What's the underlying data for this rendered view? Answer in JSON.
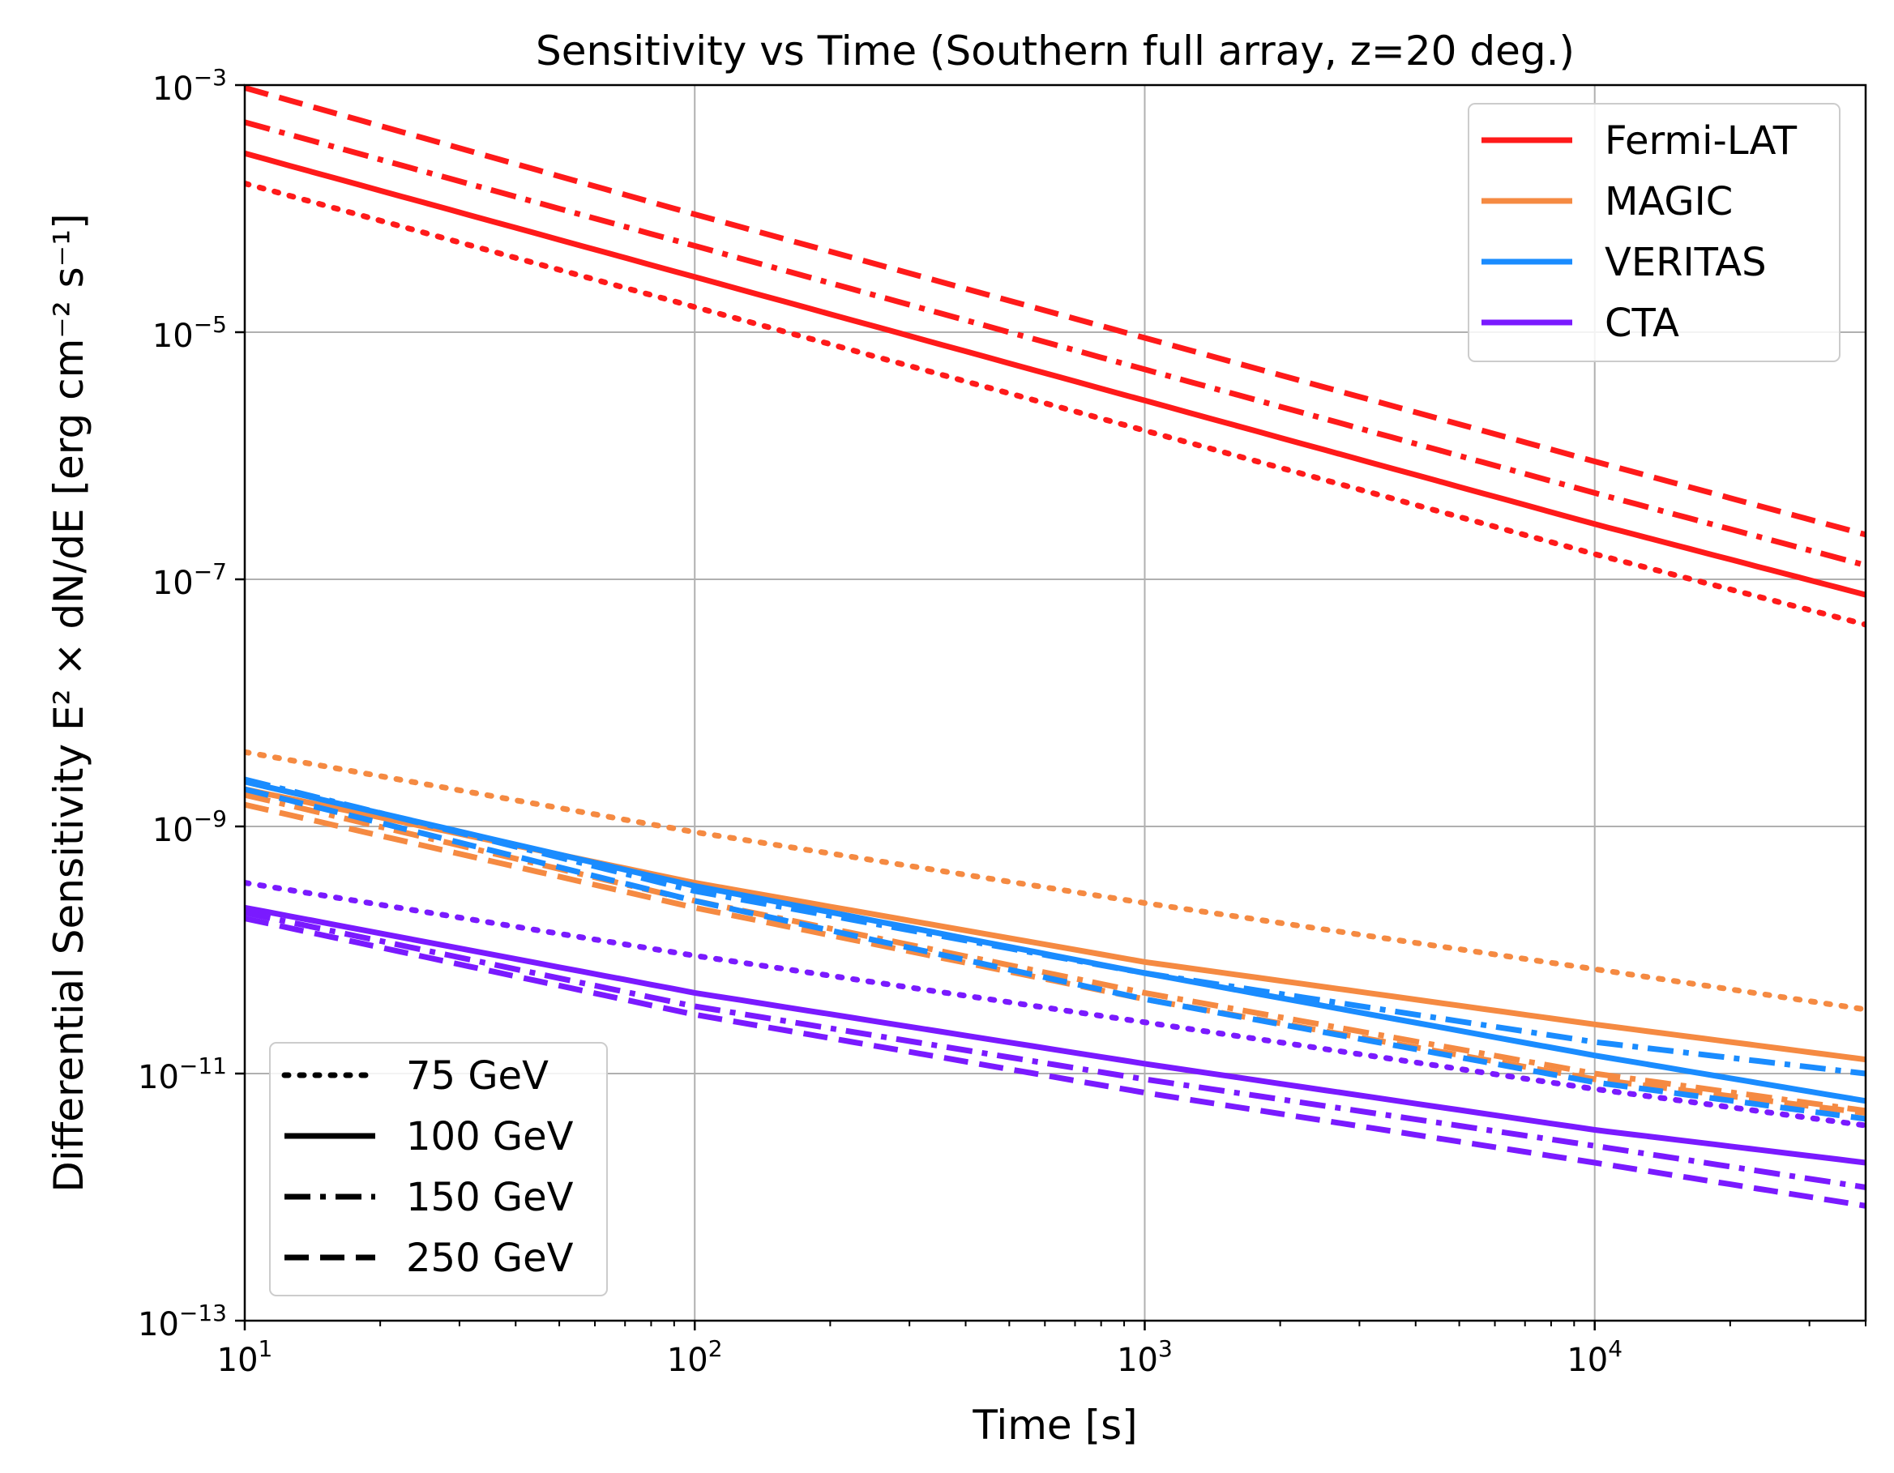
{
  "chart_data": {
    "type": "line",
    "title": "Sensitivity vs Time (Southern full array, z=20 deg.)",
    "xlabel": "Time [s]",
    "ylabel": "Differential Sensitivity E² × dN/dE [erg cm⁻² s⁻¹]",
    "xscale": "log",
    "yscale": "log",
    "xlim": [
      10,
      40000
    ],
    "ylim": [
      1e-13,
      0.001
    ],
    "grid": true,
    "x_ticks": [
      {
        "value": 10,
        "base": "10",
        "exp": "1"
      },
      {
        "value": 100,
        "base": "10",
        "exp": "2"
      },
      {
        "value": 1000,
        "base": "10",
        "exp": "3"
      },
      {
        "value": 10000,
        "base": "10",
        "exp": "4"
      }
    ],
    "y_ticks": [
      {
        "value": 1e-13,
        "base": "10",
        "exp": "−13"
      },
      {
        "value": 1e-11,
        "base": "10",
        "exp": "−11"
      },
      {
        "value": 1e-09,
        "base": "10",
        "exp": "−9"
      },
      {
        "value": 1e-07,
        "base": "10",
        "exp": "−7"
      },
      {
        "value": 1e-05,
        "base": "10",
        "exp": "−5"
      },
      {
        "value": 0.001,
        "base": "10",
        "exp": "−3"
      }
    ],
    "instrument_legend": {
      "position": "top-right",
      "items": [
        {
          "label": "Fermi-LAT",
          "color": "#ff1a1a"
        },
        {
          "label": "MAGIC",
          "color": "#f58a42"
        },
        {
          "label": "VERITAS",
          "color": "#1a8cff"
        },
        {
          "label": "CTA",
          "color": "#7a1aff"
        }
      ]
    },
    "energy_legend": {
      "position": "bottom-left",
      "items": [
        {
          "label": "75 GeV",
          "style": "dotted"
        },
        {
          "label": "100 GeV",
          "style": "solid"
        },
        {
          "label": "150 GeV",
          "style": "dashdot"
        },
        {
          "label": "250 GeV",
          "style": "dashed"
        }
      ]
    },
    "series": [
      {
        "name": "Fermi-LAT 250 GeV",
        "instrument": "Fermi-LAT",
        "energy": "250 GeV",
        "color": "#ff1a1a",
        "style": "dashed",
        "x": [
          10,
          100,
          1000,
          10000,
          40000
        ],
        "values": [
          0.00095,
          9e-05,
          9e-06,
          9e-07,
          2.3e-07
        ]
      },
      {
        "name": "Fermi-LAT 150 GeV",
        "instrument": "Fermi-LAT",
        "energy": "150 GeV",
        "color": "#ff1a1a",
        "style": "dashdot",
        "x": [
          10,
          100,
          1000,
          10000,
          40000
        ],
        "values": [
          0.0005,
          5e-05,
          5e-06,
          5e-07,
          1.3e-07
        ]
      },
      {
        "name": "Fermi-LAT 100 GeV",
        "instrument": "Fermi-LAT",
        "energy": "100 GeV",
        "color": "#ff1a1a",
        "style": "solid",
        "x": [
          10,
          100,
          1000,
          10000,
          40000
        ],
        "values": [
          0.00028,
          2.8e-05,
          2.8e-06,
          2.8e-07,
          7.5e-08
        ]
      },
      {
        "name": "Fermi-LAT 75 GeV",
        "instrument": "Fermi-LAT",
        "energy": "75 GeV",
        "color": "#ff1a1a",
        "style": "dotted",
        "x": [
          10,
          100,
          1000,
          10000,
          40000
        ],
        "values": [
          0.00016,
          1.6e-05,
          1.6e-06,
          1.6e-07,
          4.3e-08
        ]
      },
      {
        "name": "MAGIC 75 GeV",
        "instrument": "MAGIC",
        "energy": "75 GeV",
        "color": "#f58a42",
        "style": "dotted",
        "x": [
          10,
          100,
          1000,
          10000,
          40000
        ],
        "values": [
          4e-09,
          9e-10,
          2.4e-10,
          7e-11,
          3.3e-11
        ]
      },
      {
        "name": "MAGIC 100 GeV",
        "instrument": "MAGIC",
        "energy": "100 GeV",
        "color": "#f58a42",
        "style": "solid",
        "x": [
          10,
          100,
          1000,
          10000,
          40000
        ],
        "values": [
          2e-09,
          3.5e-10,
          8e-11,
          2.5e-11,
          1.3e-11
        ]
      },
      {
        "name": "MAGIC 150 GeV",
        "instrument": "MAGIC",
        "energy": "150 GeV",
        "color": "#f58a42",
        "style": "dashdot",
        "x": [
          10,
          100,
          1000,
          10000,
          40000
        ],
        "values": [
          1.8e-09,
          2.5e-10,
          4.5e-11,
          1e-11,
          5e-12
        ]
      },
      {
        "name": "MAGIC 250 GeV",
        "instrument": "MAGIC",
        "energy": "250 GeV",
        "color": "#f58a42",
        "style": "dashed",
        "x": [
          10,
          100,
          1000,
          10000,
          40000
        ],
        "values": [
          1.5e-09,
          2.2e-10,
          4e-11,
          9e-12,
          4.8e-12
        ]
      },
      {
        "name": "VERITAS 100 GeV",
        "instrument": "VERITAS",
        "energy": "100 GeV",
        "color": "#1a8cff",
        "style": "solid",
        "x": [
          10,
          100,
          1000,
          10000,
          40000
        ],
        "values": [
          2.3e-09,
          3.3e-10,
          6.5e-11,
          1.4e-11,
          6e-12
        ]
      },
      {
        "name": "VERITAS 150 GeV",
        "instrument": "VERITAS",
        "energy": "150 GeV",
        "color": "#1a8cff",
        "style": "dashdot",
        "x": [
          10,
          100,
          1000,
          10000,
          40000
        ],
        "values": [
          2.4e-09,
          3e-10,
          6.5e-11,
          1.8e-11,
          1e-11
        ]
      },
      {
        "name": "VERITAS 250 GeV",
        "instrument": "VERITAS",
        "energy": "250 GeV",
        "color": "#1a8cff",
        "style": "dashed",
        "x": [
          10,
          100,
          1000,
          10000,
          40000
        ],
        "values": [
          2e-09,
          2.5e-10,
          4e-11,
          8.5e-12,
          4.3e-12
        ]
      },
      {
        "name": "CTA 75 GeV",
        "instrument": "CTA",
        "energy": "75 GeV",
        "color": "#7a1aff",
        "style": "dotted",
        "x": [
          10,
          100,
          1000,
          10000,
          40000
        ],
        "values": [
          3.5e-10,
          9e-11,
          2.6e-11,
          7.5e-12,
          3.8e-12
        ]
      },
      {
        "name": "CTA 100 GeV",
        "instrument": "CTA",
        "energy": "100 GeV",
        "color": "#7a1aff",
        "style": "solid",
        "x": [
          10,
          100,
          1000,
          10000,
          40000
        ],
        "values": [
          2.2e-10,
          4.5e-11,
          1.2e-11,
          3.5e-12,
          1.9e-12
        ]
      },
      {
        "name": "CTA 150 GeV",
        "instrument": "CTA",
        "energy": "150 GeV",
        "color": "#7a1aff",
        "style": "dashdot",
        "x": [
          10,
          100,
          1000,
          10000,
          40000
        ],
        "values": [
          2e-10,
          3.5e-11,
          9e-12,
          2.6e-12,
          1.2e-12
        ]
      },
      {
        "name": "CTA 250 GeV",
        "instrument": "CTA",
        "energy": "250 GeV",
        "color": "#7a1aff",
        "style": "dashed",
        "x": [
          10,
          100,
          1000,
          10000,
          40000
        ],
        "values": [
          1.8e-10,
          3e-11,
          7e-12,
          1.9e-12,
          8.5e-13
        ]
      }
    ]
  }
}
